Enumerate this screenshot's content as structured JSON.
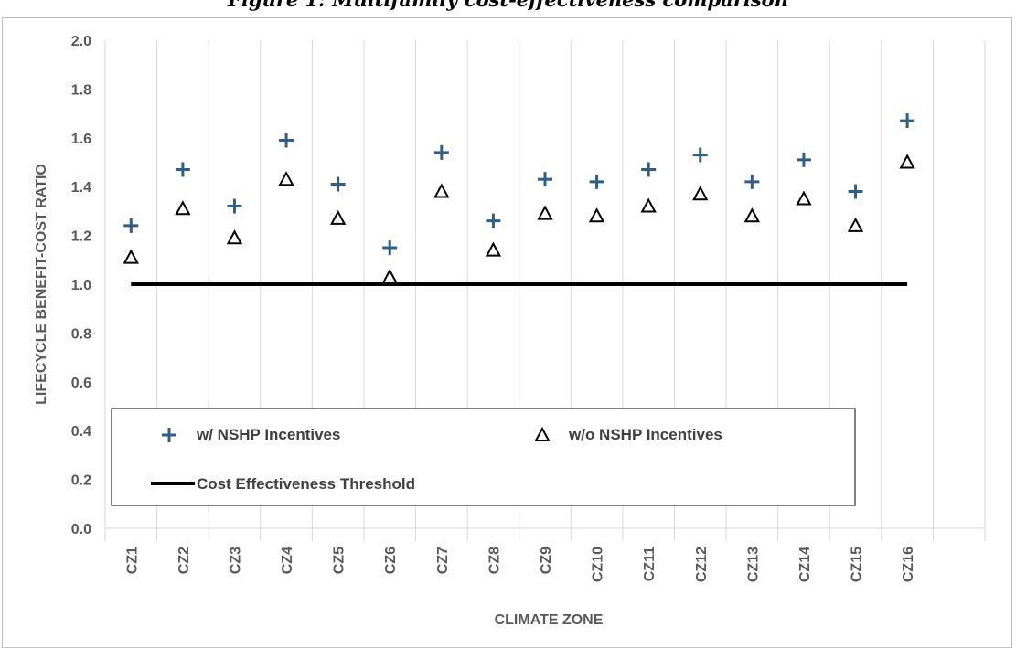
{
  "caption": "Figure 1: Multifamily cost-effectiveness comparison",
  "chart_data": {
    "type": "scatter",
    "categories": [
      "CZ1",
      "CZ2",
      "CZ3",
      "CZ4",
      "CZ5",
      "CZ6",
      "CZ7",
      "CZ8",
      "CZ9",
      "CZ10",
      "CZ11",
      "CZ12",
      "CZ13",
      "CZ14",
      "CZ15",
      "CZ16"
    ],
    "series": [
      {
        "name": "w/ NSHP Incentives",
        "marker": "plus",
        "color": "#2e5f8a",
        "values": [
          1.24,
          1.47,
          1.32,
          1.59,
          1.41,
          1.15,
          1.54,
          1.26,
          1.43,
          1.42,
          1.47,
          1.53,
          1.42,
          1.51,
          1.38,
          1.67
        ]
      },
      {
        "name": "w/o NSHP Incentives",
        "marker": "triangle",
        "color": "#000000",
        "values": [
          1.11,
          1.31,
          1.19,
          1.43,
          1.27,
          1.03,
          1.38,
          1.14,
          1.29,
          1.28,
          1.32,
          1.37,
          1.28,
          1.35,
          1.24,
          1.5
        ]
      }
    ],
    "threshold": {
      "name": "Cost Effectiveness Threshold",
      "value": 1.0,
      "color": "#000000"
    },
    "ylim": [
      0,
      2.0
    ],
    "yticks": [
      "0.0",
      "0.2",
      "0.4",
      "0.6",
      "0.8",
      "1.0",
      "1.2",
      "1.4",
      "1.6",
      "1.8",
      "2.0"
    ],
    "xlabel": "CLIMATE ZONE",
    "ylabel": "LIFECYCLE BENEFIT-COST RATIO",
    "grid": "vertical",
    "legend_position": "bottom-left"
  }
}
